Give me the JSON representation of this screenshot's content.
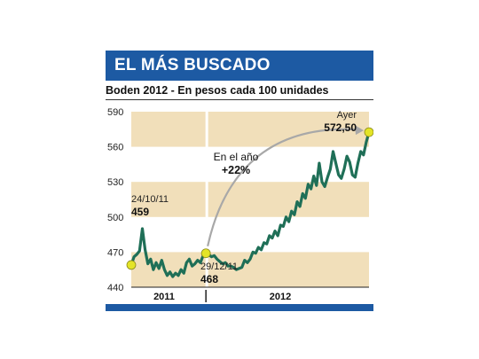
{
  "header": {
    "title": "EL MÁS BUSCADO"
  },
  "chart_data": {
    "type": "line",
    "title": "EL MÁS BUSCADO",
    "subtitle": "Boden 2012 - En pesos cada 100 unidades",
    "ylim": [
      440,
      590
    ],
    "yticks": [
      "590",
      "560",
      "530",
      "500",
      "470",
      "440"
    ],
    "ytick_values": [
      590,
      560,
      530,
      500,
      470,
      440
    ],
    "x_periods": [
      "2011",
      "2012"
    ],
    "shaded_bands": [
      [
        440,
        470
      ],
      [
        500,
        530
      ],
      [
        560,
        590
      ]
    ],
    "series": [
      {
        "color": "#1f6f57",
        "x": [
          0,
          1,
          2,
          3,
          4,
          5,
          6,
          7,
          8,
          9,
          10,
          11,
          12,
          13,
          14,
          15,
          16,
          17,
          18,
          19,
          20,
          21,
          22,
          23,
          24,
          25,
          26,
          27,
          28,
          29,
          30,
          31,
          32,
          33,
          34,
          35,
          36,
          37,
          38,
          39,
          40,
          41,
          42,
          43,
          44,
          45,
          46,
          47,
          48,
          49,
          50,
          51,
          52,
          53,
          54,
          55,
          56,
          57,
          58,
          59,
          60,
          61,
          62,
          63,
          64,
          65,
          66,
          67,
          68,
          69,
          70,
          71,
          72,
          73,
          74,
          75,
          76,
          77,
          78,
          79,
          80,
          81,
          82,
          83,
          84,
          85,
          86
        ],
        "values": [
          459,
          466,
          468,
          471,
          490,
          472,
          460,
          464,
          455,
          461,
          456,
          463,
          455,
          450,
          453,
          449,
          452,
          450,
          455,
          452,
          461,
          464,
          458,
          460,
          463,
          461,
          467,
          469,
          468,
          466,
          467,
          464,
          462,
          460,
          461,
          458,
          458,
          457,
          455,
          456,
          457,
          463,
          461,
          464,
          470,
          469,
          474,
          472,
          478,
          477,
          484,
          482,
          488,
          484,
          493,
          492,
          500,
          496,
          505,
          502,
          513,
          509,
          520,
          516,
          528,
          524,
          535,
          527,
          546,
          530,
          526,
          534,
          541,
          556,
          546,
          536,
          533,
          541,
          552,
          547,
          536,
          534,
          546,
          556,
          553,
          564,
          572.5
        ]
      }
    ],
    "annotations": [
      {
        "date": "24/10/11",
        "value": "459"
      },
      {
        "date": "29/12/11",
        "value": "468"
      },
      {
        "date": "Ayer",
        "value": "572,50"
      },
      {
        "line1": "En el año",
        "line2": "+22%"
      }
    ]
  }
}
